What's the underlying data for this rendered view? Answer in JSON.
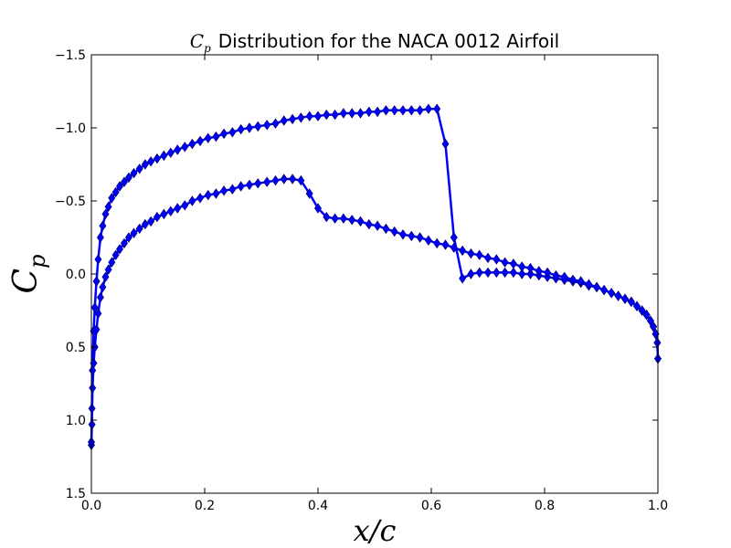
{
  "chart_data": {
    "type": "line",
    "title": {
      "math": "C",
      "math_sub": "p",
      "text": "Distribution for the NACA 0012 Airfoil"
    },
    "xlabel": "x/c",
    "ylabel": "C",
    "ylabel_sub": "p",
    "xlim": [
      0.0,
      1.0
    ],
    "ylim": [
      -1.5,
      1.5
    ],
    "y_inverted": true,
    "x_ticks": [
      "0.0",
      "0.2",
      "0.4",
      "0.6",
      "0.8",
      "1.0"
    ],
    "y_ticks": [
      "−1.5",
      "−1.0",
      "−0.5",
      "0.0",
      "0.5",
      "1.0",
      "1.5"
    ],
    "x_tick_values": [
      0.0,
      0.2,
      0.4,
      0.6,
      0.8,
      1.0
    ],
    "y_tick_values": [
      -1.5,
      -1.0,
      -0.5,
      0.0,
      0.5,
      1.0,
      1.5
    ],
    "grid": false,
    "legend": "none",
    "marker": "diamond",
    "line_color": "#0000ff",
    "marker_edge_color": "#000080",
    "series": [
      {
        "x": [
          0.0,
          0.001,
          0.002,
          0.004,
          0.006,
          0.009,
          0.012,
          0.016,
          0.02,
          0.025,
          0.03,
          0.036,
          0.043,
          0.05,
          0.058,
          0.066,
          0.075,
          0.085,
          0.095,
          0.105,
          0.116,
          0.128,
          0.14,
          0.152,
          0.165,
          0.178,
          0.192,
          0.206,
          0.22,
          0.234,
          0.249,
          0.264,
          0.279,
          0.294,
          0.31,
          0.325,
          0.34,
          0.355,
          0.37,
          0.385,
          0.4,
          0.415,
          0.43,
          0.445,
          0.46,
          0.475,
          0.49,
          0.505,
          0.52,
          0.535,
          0.55,
          0.565,
          0.58,
          0.595,
          0.61,
          0.625,
          0.64,
          0.655,
          0.67,
          0.685,
          0.7,
          0.715,
          0.73,
          0.745,
          0.76,
          0.775,
          0.79,
          0.805,
          0.82,
          0.835,
          0.85,
          0.864,
          0.878,
          0.892,
          0.905,
          0.918,
          0.93,
          0.942,
          0.953,
          0.963,
          0.972,
          0.98,
          0.987,
          0.992,
          0.996,
          0.999,
          1.0
        ],
        "y": [
          1.17,
          0.92,
          0.66,
          0.39,
          0.23,
          0.05,
          -0.1,
          -0.25,
          -0.33,
          -0.41,
          -0.46,
          -0.52,
          -0.56,
          -0.6,
          -0.63,
          -0.66,
          -0.69,
          -0.72,
          -0.75,
          -0.77,
          -0.79,
          -0.81,
          -0.83,
          -0.85,
          -0.87,
          -0.89,
          -0.91,
          -0.93,
          -0.94,
          -0.96,
          -0.97,
          -0.99,
          -1.0,
          -1.01,
          -1.02,
          -1.03,
          -1.05,
          -1.06,
          -1.07,
          -1.08,
          -1.08,
          -1.09,
          -1.09,
          -1.1,
          -1.1,
          -1.1,
          -1.11,
          -1.11,
          -1.12,
          -1.12,
          -1.12,
          -1.12,
          -1.12,
          -1.13,
          -1.13,
          -0.89,
          -0.25,
          0.03,
          0.0,
          -0.01,
          -0.01,
          -0.01,
          -0.01,
          -0.01,
          0.0,
          0.0,
          0.01,
          0.02,
          0.03,
          0.04,
          0.05,
          0.06,
          0.08,
          0.09,
          0.11,
          0.13,
          0.15,
          0.17,
          0.19,
          0.22,
          0.25,
          0.28,
          0.32,
          0.36,
          0.41,
          0.47,
          0.58
        ]
      },
      {
        "x": [
          0.0,
          0.001,
          0.002,
          0.004,
          0.006,
          0.009,
          0.012,
          0.016,
          0.02,
          0.025,
          0.03,
          0.036,
          0.043,
          0.05,
          0.058,
          0.066,
          0.075,
          0.085,
          0.095,
          0.105,
          0.116,
          0.128,
          0.14,
          0.152,
          0.165,
          0.178,
          0.192,
          0.206,
          0.22,
          0.234,
          0.249,
          0.264,
          0.279,
          0.294,
          0.31,
          0.325,
          0.34,
          0.355,
          0.37,
          0.385,
          0.4,
          0.415,
          0.43,
          0.445,
          0.46,
          0.475,
          0.49,
          0.505,
          0.52,
          0.535,
          0.55,
          0.565,
          0.58,
          0.595,
          0.61,
          0.625,
          0.64,
          0.655,
          0.67,
          0.685,
          0.7,
          0.715,
          0.73,
          0.745,
          0.76,
          0.775,
          0.79,
          0.805,
          0.82,
          0.835,
          0.85,
          0.864,
          0.878,
          0.892,
          0.905,
          0.918,
          0.93,
          0.942,
          0.953,
          0.963,
          0.972,
          0.98,
          0.987,
          0.992,
          0.996,
          0.999,
          1.0
        ],
        "y": [
          1.15,
          1.03,
          0.78,
          0.61,
          0.5,
          0.38,
          0.27,
          0.16,
          0.09,
          0.02,
          -0.03,
          -0.08,
          -0.13,
          -0.17,
          -0.21,
          -0.25,
          -0.28,
          -0.31,
          -0.34,
          -0.36,
          -0.39,
          -0.41,
          -0.43,
          -0.45,
          -0.47,
          -0.5,
          -0.52,
          -0.54,
          -0.55,
          -0.57,
          -0.58,
          -0.6,
          -0.61,
          -0.62,
          -0.63,
          -0.64,
          -0.65,
          -0.65,
          -0.64,
          -0.55,
          -0.45,
          -0.39,
          -0.38,
          -0.38,
          -0.37,
          -0.36,
          -0.34,
          -0.33,
          -0.31,
          -0.29,
          -0.27,
          -0.26,
          -0.25,
          -0.23,
          -0.21,
          -0.2,
          -0.18,
          -0.16,
          -0.14,
          -0.13,
          -0.11,
          -0.1,
          -0.08,
          -0.07,
          -0.05,
          -0.04,
          -0.02,
          -0.01,
          0.01,
          0.02,
          0.04,
          0.05,
          0.07,
          0.09,
          0.11,
          0.13,
          0.15,
          0.17,
          0.19,
          0.22,
          0.25,
          0.28,
          0.32,
          0.36,
          0.41,
          0.47,
          0.58
        ]
      }
    ]
  }
}
